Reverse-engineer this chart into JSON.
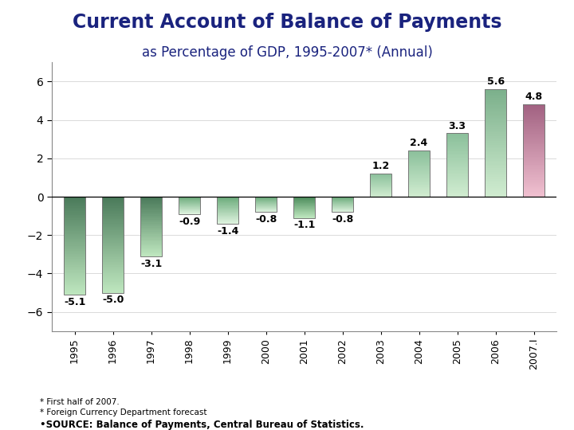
{
  "years": [
    "1995",
    "1996",
    "1997",
    "1998",
    "1999",
    "2000",
    "2001",
    "2002",
    "2003",
    "2004",
    "2005",
    "2006",
    "2007.I"
  ],
  "values": [
    -5.1,
    -5.0,
    -3.1,
    -0.9,
    -1.4,
    -0.8,
    -1.1,
    -0.8,
    1.2,
    2.4,
    3.3,
    5.6,
    4.8
  ],
  "bar_color_dark": [
    "#4a7a5a",
    "#4a7a5a",
    "#4a7a5a",
    "#6aaa7a",
    "#6aaa7a",
    "#6aaa7a",
    "#4a8a5a",
    "#6aaa7a",
    "#8abf9a",
    "#8abf9a",
    "#8abf9a",
    "#7aaf8a",
    "#a06080"
  ],
  "bar_color_light": [
    "#c0e8c0",
    "#c0e8c0",
    "#c0e8c0",
    "#e0f4e0",
    "#e0f4e0",
    "#e0f4e0",
    "#c0e8c0",
    "#e0f4e0",
    "#d0ecd0",
    "#d0ecd0",
    "#d0ecd0",
    "#d0ecd0",
    "#f0c0d0"
  ],
  "title": "Current Account of Balance of Payments",
  "subtitle": "as Percentage of GDP, 1995-2007* (Annual)",
  "ylim": [
    -7,
    7
  ],
  "yticks": [
    -6,
    -4,
    -2,
    0,
    2,
    4,
    6
  ],
  "footnote1": "* First half of 2007.",
  "footnote2": "* Foreign Currency Department forecast",
  "footnote3": "•SOURCE: Balance of Payments, Central Bureau of Statistics.",
  "title_color": "#1a237e",
  "subtitle_color": "#1a237e",
  "label_fontsize": 9,
  "title_fontsize": 17,
  "subtitle_fontsize": 12,
  "bar_width": 0.55
}
